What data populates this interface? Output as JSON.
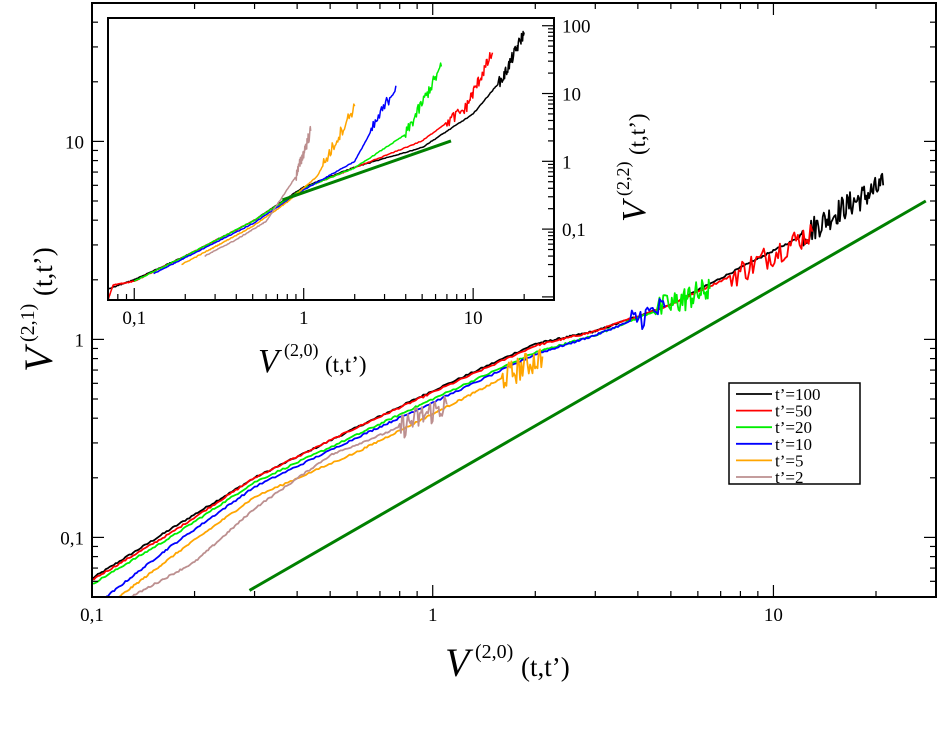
{
  "chart_data": [
    {
      "type": "line",
      "scale": "log-log",
      "title": "",
      "xlabel": {
        "symbol": "V",
        "superscript": "(2,0)",
        "args": "(t,t’)"
      },
      "ylabel": {
        "symbol": "V",
        "superscript": "(2,1)",
        "args": "(t,t’)"
      },
      "xlim": [
        0.1,
        30
      ],
      "ylim": [
        0.05,
        50
      ],
      "x_ticks": [
        0.1,
        1,
        10
      ],
      "x_tick_labels": [
        "0,1",
        "1",
        "10"
      ],
      "y_ticks": [
        0.1,
        1,
        10
      ],
      "y_tick_labels": [
        "0,1",
        "1",
        "10"
      ],
      "legend": {
        "position": "center-right",
        "entries": [
          {
            "label": "t’=100",
            "color": "#000000"
          },
          {
            "label": "t’=50",
            "color": "#ff0000"
          },
          {
            "label": "t’=20",
            "color": "#00ee00"
          },
          {
            "label": "t’=10",
            "color": "#0000ff"
          },
          {
            "label": "t’=5",
            "color": "#ffa500"
          },
          {
            "label": "t’=2",
            "color": "#bc8f8f"
          }
        ]
      },
      "series": [
        {
          "name": "t’=100",
          "color": "#000000",
          "x": [
            0.1,
            0.17,
            0.3,
            0.6,
            1.0,
            2.0,
            3.0,
            5.0,
            8.0,
            12.0,
            16.0,
            21.0
          ],
          "y": [
            0.062,
            0.11,
            0.2,
            0.36,
            0.55,
            0.95,
            1.1,
            1.5,
            2.3,
            3.3,
            4.6,
            6.0
          ],
          "noisy_from_x": 12.0
        },
        {
          "name": "t’=50",
          "color": "#ff0000",
          "x": [
            0.1,
            0.17,
            0.3,
            0.6,
            1.0,
            2.0,
            3.0,
            5.0,
            8.0,
            13.0
          ],
          "y": [
            0.061,
            0.105,
            0.2,
            0.36,
            0.54,
            0.93,
            1.1,
            1.5,
            2.2,
            3.5
          ],
          "noisy_from_x": 7.5
        },
        {
          "name": "t’=20",
          "color": "#00ee00",
          "x": [
            0.1,
            0.17,
            0.3,
            0.6,
            1.0,
            2.0,
            3.0,
            5.0,
            6.5
          ],
          "y": [
            0.058,
            0.1,
            0.19,
            0.33,
            0.5,
            0.86,
            1.05,
            1.5,
            1.8
          ],
          "noisy_from_x": 4.5
        },
        {
          "name": "t’=10",
          "color": "#0000ff",
          "x": [
            0.11,
            0.17,
            0.3,
            0.6,
            1.0,
            2.0,
            3.0,
            4.8
          ],
          "y": [
            0.05,
            0.09,
            0.18,
            0.32,
            0.48,
            0.84,
            1.05,
            1.45
          ],
          "noisy_from_x": 3.8
        },
        {
          "name": "t’=5",
          "color": "#ffa500",
          "x": [
            0.12,
            0.18,
            0.3,
            0.6,
            1.0,
            1.5,
            2.1
          ],
          "y": [
            0.05,
            0.085,
            0.16,
            0.27,
            0.42,
            0.6,
            0.82
          ],
          "noisy_from_x": 1.6
        },
        {
          "name": "t’=2",
          "color": "#bc8f8f",
          "x": [
            0.13,
            0.2,
            0.3,
            0.5,
            0.8,
            1.1
          ],
          "y": [
            0.05,
            0.075,
            0.14,
            0.26,
            0.36,
            0.47
          ],
          "noisy_from_x": 0.8
        },
        {
          "name": "power-law guide",
          "color": "#008000",
          "x": [
            0.29,
            28
          ],
          "y": [
            0.054,
            5.0
          ]
        }
      ]
    },
    {
      "type": "line",
      "scale": "log-log",
      "title": "",
      "inset": true,
      "xlabel": {
        "symbol": "V",
        "superscript": "(2,0)",
        "args": "(t,t’)"
      },
      "ylabel": {
        "symbol": "V",
        "superscript": "(2,2)",
        "args": "(t,t’)"
      },
      "xlim": [
        0.07,
        30
      ],
      "ylim": [
        0.009,
        130
      ],
      "x_ticks": [
        0.1,
        1,
        10
      ],
      "x_tick_labels": [
        "0,1",
        "1",
        "10"
      ],
      "y_ticks": [
        0.1,
        1,
        10,
        100
      ],
      "y_tick_labels": [
        "0,1",
        "1",
        "10",
        "100"
      ],
      "series": [
        {
          "name": "t’=100",
          "color": "#000000",
          "x": [
            0.07,
            0.1,
            0.2,
            0.5,
            1.0,
            2.0,
            5.0,
            10.0,
            15.0,
            20.0
          ],
          "y": [
            0.013,
            0.018,
            0.04,
            0.13,
            0.42,
            0.82,
            1.6,
            5.0,
            17.0,
            80.0
          ],
          "noisy_from_x": 14.0
        },
        {
          "name": "t’=50",
          "color": "#ff0000",
          "x": [
            0.07,
            0.075,
            0.1,
            0.2,
            0.5,
            1.0,
            2.0,
            5.0,
            9.0,
            13.0
          ],
          "y": [
            0.009,
            0.015,
            0.017,
            0.04,
            0.13,
            0.4,
            0.8,
            2.0,
            6.0,
            40.0
          ],
          "noisy_from_x": 7.0
        },
        {
          "name": "t’=20",
          "color": "#00ee00",
          "x": [
            0.1,
            0.2,
            0.5,
            1.0,
            2.0,
            4.0,
            6.5
          ],
          "y": [
            0.017,
            0.04,
            0.13,
            0.4,
            0.8,
            2.5,
            25.0
          ],
          "noisy_from_x": 4.0
        },
        {
          "name": "t’=10",
          "color": "#0000ff",
          "x": [
            0.13,
            0.2,
            0.5,
            1.0,
            2.0,
            3.5
          ],
          "y": [
            0.022,
            0.038,
            0.12,
            0.38,
            1.0,
            13.0
          ],
          "noisy_from_x": 2.5
        },
        {
          "name": "t’=5",
          "color": "#ffa500",
          "x": [
            0.19,
            0.3,
            0.5,
            0.8,
            1.2,
            2.0
          ],
          "y": [
            0.03,
            0.055,
            0.11,
            0.25,
            0.6,
            6.5
          ],
          "noisy_from_x": 1.3
        },
        {
          "name": "t’=2",
          "color": "#bc8f8f",
          "x": [
            0.26,
            0.4,
            0.6,
            0.9,
            1.1
          ],
          "y": [
            0.04,
            0.07,
            0.13,
            0.6,
            2.8
          ],
          "noisy_from_x": 0.9
        },
        {
          "name": "power-law guide",
          "color": "#008000",
          "x": [
            0.75,
            7.4
          ],
          "y": [
            0.27,
            2.0
          ]
        }
      ]
    }
  ]
}
